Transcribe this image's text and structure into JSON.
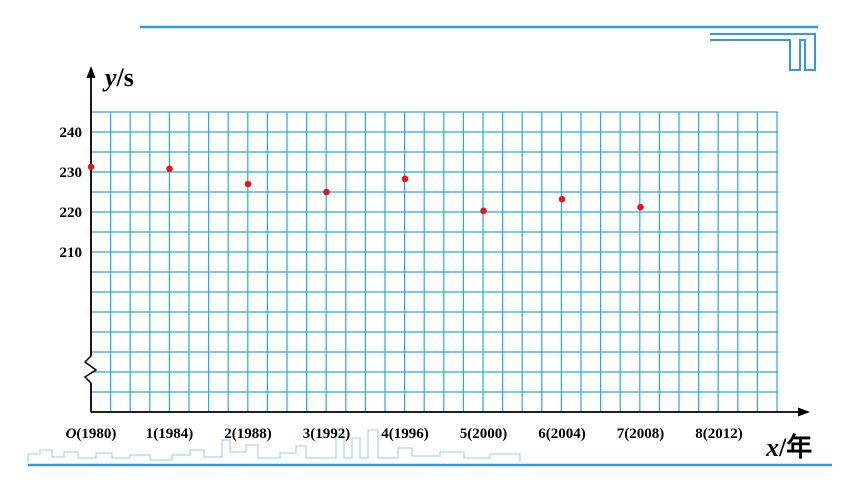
{
  "colors": {
    "grid": "#29A9E1",
    "axis": "#000000",
    "point": "#E8141B",
    "decor_line": "#3399DD",
    "skyline": "#B9DDF1"
  },
  "chart_data": {
    "type": "scatter",
    "title": "",
    "xlabel": {
      "var": "x",
      "unit": "/年"
    },
    "ylabel": {
      "var": "y",
      "unit": "/s"
    },
    "x_ticks": [
      {
        "prefix": "O",
        "label": "(1980)",
        "value": 0
      },
      {
        "prefix": "",
        "label": "1(1984)",
        "value": 1
      },
      {
        "prefix": "",
        "label": "2(1988)",
        "value": 2
      },
      {
        "prefix": "",
        "label": "3(1992)",
        "value": 3
      },
      {
        "prefix": "",
        "label": "4(1996)",
        "value": 4
      },
      {
        "prefix": "",
        "label": "5(2000)",
        "value": 5
      },
      {
        "prefix": "",
        "label": "6(2004)",
        "value": 6
      },
      {
        "prefix": "",
        "label": "7(2008)",
        "value": 7
      },
      {
        "prefix": "",
        "label": "8(2012)",
        "value": 8
      }
    ],
    "y_ticks": [
      240,
      230,
      220,
      210
    ],
    "xlim": [
      0,
      8.8
    ],
    "ylim": [
      210,
      244.5
    ],
    "y_axis_break": true,
    "grid": true,
    "points": [
      {
        "x": 0,
        "y": 231.3
      },
      {
        "x": 1,
        "y": 230.8
      },
      {
        "x": 2,
        "y": 227.0
      },
      {
        "x": 3,
        "y": 225.0
      },
      {
        "x": 4,
        "y": 228.3
      },
      {
        "x": 5,
        "y": 220.3
      },
      {
        "x": 6,
        "y": 223.2
      },
      {
        "x": 7,
        "y": 221.2
      }
    ]
  }
}
